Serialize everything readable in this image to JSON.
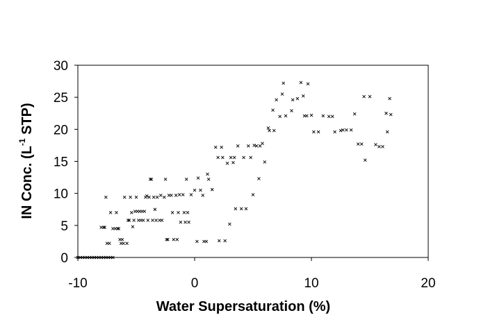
{
  "chart_data": {
    "type": "scatter",
    "title": "",
    "xlabel": "Water Supersaturation (%)",
    "ylabel": {
      "before": "IN Conc. (L",
      "sup": "-1",
      "after": " STP)"
    },
    "xlim": [
      -10,
      20
    ],
    "ylim": [
      0,
      30
    ],
    "xticks": [
      -10,
      0,
      10,
      20
    ],
    "yticks": [
      0,
      5,
      10,
      15,
      20,
      25,
      30
    ],
    "grid": false,
    "legend": "none",
    "marker": "x",
    "color": "#000000",
    "series": [
      {
        "points": [
          [
            -10,
            0
          ],
          [
            -9.8,
            0
          ],
          [
            -9.6,
            0
          ],
          [
            -9.4,
            0
          ],
          [
            -9.2,
            0
          ],
          [
            -9.0,
            0
          ],
          [
            -8.8,
            0
          ],
          [
            -8.6,
            0
          ],
          [
            -8.4,
            0
          ],
          [
            -8.2,
            0
          ],
          [
            -8.0,
            0
          ],
          [
            -7.8,
            0
          ],
          [
            -7.6,
            0
          ],
          [
            -7.4,
            0
          ],
          [
            -7.2,
            0
          ],
          [
            -7.0,
            0
          ],
          [
            -8.0,
            4.7
          ],
          [
            -7.8,
            4.7
          ],
          [
            -7.7,
            4.7
          ],
          [
            -7.6,
            9.4
          ],
          [
            -7.5,
            2.2
          ],
          [
            -7.3,
            2.2
          ],
          [
            -7.2,
            7.0
          ],
          [
            -7.0,
            4.5
          ],
          [
            -6.8,
            4.5
          ],
          [
            -6.7,
            7.0
          ],
          [
            -6.6,
            4.5
          ],
          [
            -6.5,
            4.5
          ],
          [
            -6.4,
            2.8
          ],
          [
            -6.3,
            2.2
          ],
          [
            -6.2,
            2.8
          ],
          [
            -6.1,
            2.2
          ],
          [
            -6.0,
            9.4
          ],
          [
            -5.8,
            2.2
          ],
          [
            -5.7,
            5.8
          ],
          [
            -5.6,
            5.8
          ],
          [
            -5.5,
            9.4
          ],
          [
            -5.4,
            7.0
          ],
          [
            -5.3,
            4.8
          ],
          [
            -5.2,
            5.8
          ],
          [
            -5.1,
            7.2
          ],
          [
            -5.0,
            9.4
          ],
          [
            -4.9,
            7.2
          ],
          [
            -4.8,
            5.8
          ],
          [
            -4.7,
            7.2
          ],
          [
            -4.6,
            5.8
          ],
          [
            -4.5,
            7.2
          ],
          [
            -4.4,
            5.8
          ],
          [
            -4.3,
            7.2
          ],
          [
            -4.2,
            9.4
          ],
          [
            -4.1,
            9.6
          ],
          [
            -4.0,
            5.8
          ],
          [
            -3.9,
            9.4
          ],
          [
            -3.8,
            12.2
          ],
          [
            -3.7,
            12.2
          ],
          [
            -3.6,
            5.8
          ],
          [
            -3.5,
            9.4
          ],
          [
            -3.4,
            7.5
          ],
          [
            -3.3,
            5.8
          ],
          [
            -3.2,
            9.4
          ],
          [
            -3.0,
            5.8
          ],
          [
            -2.9,
            9.7
          ],
          [
            -2.8,
            5.8
          ],
          [
            -2.6,
            9.4
          ],
          [
            -2.5,
            12.2
          ],
          [
            -2.4,
            2.8
          ],
          [
            -2.3,
            2.8
          ],
          [
            -2.2,
            9.7
          ],
          [
            -2.0,
            9.7
          ],
          [
            -1.9,
            7.0
          ],
          [
            -1.8,
            2.8
          ],
          [
            -1.6,
            9.7
          ],
          [
            -1.5,
            2.8
          ],
          [
            -1.4,
            7.0
          ],
          [
            -1.3,
            9.8
          ],
          [
            -1.2,
            5.5
          ],
          [
            -1.0,
            9.8
          ],
          [
            -0.9,
            7.0
          ],
          [
            -0.8,
            5.5
          ],
          [
            -0.7,
            12.2
          ],
          [
            -0.6,
            7.0
          ],
          [
            -0.5,
            5.5
          ],
          [
            -0.3,
            9.8
          ],
          [
            0.0,
            10.5
          ],
          [
            0.2,
            2.5
          ],
          [
            0.3,
            12.4
          ],
          [
            0.5,
            10.5
          ],
          [
            0.7,
            9.7
          ],
          [
            0.8,
            2.5
          ],
          [
            1.0,
            2.5
          ],
          [
            1.1,
            13.0
          ],
          [
            1.2,
            12.2
          ],
          [
            1.5,
            10.6
          ],
          [
            1.8,
            17.2
          ],
          [
            2.0,
            15.6
          ],
          [
            2.1,
            2.6
          ],
          [
            2.3,
            17.2
          ],
          [
            2.4,
            15.6
          ],
          [
            2.6,
            2.6
          ],
          [
            2.8,
            14.7
          ],
          [
            3.0,
            5.2
          ],
          [
            3.1,
            15.6
          ],
          [
            3.3,
            14.8
          ],
          [
            3.4,
            15.6
          ],
          [
            3.5,
            7.6
          ],
          [
            3.7,
            17.4
          ],
          [
            4.0,
            7.6
          ],
          [
            4.2,
            15.6
          ],
          [
            4.4,
            7.6
          ],
          [
            4.6,
            17.4
          ],
          [
            4.8,
            15.6
          ],
          [
            5.0,
            9.8
          ],
          [
            5.1,
            17.5
          ],
          [
            5.3,
            17.4
          ],
          [
            5.5,
            12.3
          ],
          [
            5.6,
            17.4
          ],
          [
            5.8,
            17.8
          ],
          [
            6.0,
            14.9
          ],
          [
            6.3,
            20.2
          ],
          [
            6.4,
            19.8
          ],
          [
            6.7,
            23.0
          ],
          [
            6.8,
            19.8
          ],
          [
            7.0,
            24.6
          ],
          [
            7.3,
            22.0
          ],
          [
            7.5,
            25.5
          ],
          [
            7.6,
            27.2
          ],
          [
            7.8,
            22.1
          ],
          [
            8.3,
            22.9
          ],
          [
            8.4,
            24.6
          ],
          [
            8.8,
            24.8
          ],
          [
            9.1,
            27.3
          ],
          [
            9.3,
            25.2
          ],
          [
            9.4,
            22.1
          ],
          [
            9.6,
            22.1
          ],
          [
            9.7,
            27.1
          ],
          [
            10.0,
            22.2
          ],
          [
            10.2,
            19.6
          ],
          [
            10.6,
            19.6
          ],
          [
            11.0,
            22.1
          ],
          [
            11.5,
            22.0
          ],
          [
            11.8,
            22.0
          ],
          [
            12.0,
            19.6
          ],
          [
            12.5,
            19.8
          ],
          [
            12.7,
            19.9
          ],
          [
            13.0,
            19.9
          ],
          [
            13.4,
            19.9
          ],
          [
            13.7,
            22.4
          ],
          [
            14.0,
            17.7
          ],
          [
            14.3,
            17.7
          ],
          [
            14.5,
            25.1
          ],
          [
            14.6,
            15.2
          ],
          [
            15.0,
            25.1
          ],
          [
            15.5,
            17.6
          ],
          [
            15.8,
            17.3
          ],
          [
            16.1,
            17.3
          ],
          [
            16.4,
            22.5
          ],
          [
            16.5,
            19.6
          ],
          [
            16.7,
            24.8
          ],
          [
            16.8,
            22.3
          ]
        ]
      }
    ]
  }
}
